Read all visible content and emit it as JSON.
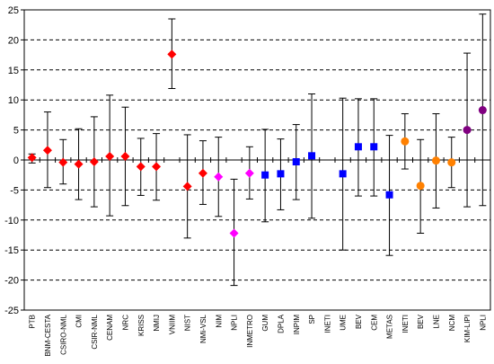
{
  "chart_data": {
    "type": "scatter",
    "title": "",
    "xlabel": "",
    "ylabel": "",
    "ylim": [
      -25,
      25
    ],
    "yticks": [
      25,
      20,
      15,
      10,
      5,
      0,
      -5,
      -10,
      -15,
      -20,
      -25
    ],
    "grid": "horizontal dashed",
    "legend": "none",
    "points": [
      {
        "label": "PTB",
        "y": 0.4,
        "err_low": -0.5,
        "err_high": 1.0,
        "color": "#ff0000",
        "marker": "diamond"
      },
      {
        "label": "BNM-CESTA",
        "y": 1.6,
        "err_low": -4.6,
        "err_high": 8.0,
        "color": "#ff0000",
        "marker": "diamond"
      },
      {
        "label": "CSIRO-NML",
        "y": -0.4,
        "err_low": -4.0,
        "err_high": 3.4,
        "color": "#ff0000",
        "marker": "diamond"
      },
      {
        "label": "CMI",
        "y": -0.7,
        "err_low": -6.6,
        "err_high": 5.2,
        "color": "#ff0000",
        "marker": "diamond"
      },
      {
        "label": "CSIR-NML",
        "y": -0.3,
        "err_low": -7.8,
        "err_high": 7.2,
        "color": "#ff0000",
        "marker": "diamond"
      },
      {
        "label": "CENAM",
        "y": 0.6,
        "err_low": -9.3,
        "err_high": 10.8,
        "color": "#ff0000",
        "marker": "diamond"
      },
      {
        "label": "NRC",
        "y": 0.6,
        "err_low": -7.6,
        "err_high": 8.8,
        "color": "#ff0000",
        "marker": "diamond"
      },
      {
        "label": "KRISS",
        "y": -1.1,
        "err_low": -5.9,
        "err_high": 3.6,
        "color": "#ff0000",
        "marker": "diamond"
      },
      {
        "label": "NMIJ",
        "y": -1.1,
        "err_low": -6.7,
        "err_high": 4.4,
        "color": "#ff0000",
        "marker": "diamond"
      },
      {
        "label": "VNIIM",
        "y": 17.6,
        "err_low": 11.9,
        "err_high": 23.5,
        "color": "#ff0000",
        "marker": "diamond"
      },
      {
        "label": "NIST",
        "y": -4.4,
        "err_low": -13.0,
        "err_high": 4.2,
        "color": "#ff0000",
        "marker": "diamond"
      },
      {
        "label": "NMi-VSL",
        "y": -2.2,
        "err_low": -7.4,
        "err_high": 3.2,
        "color": "#ff0000",
        "marker": "diamond"
      },
      {
        "label": "NIM",
        "y": -2.8,
        "err_low": -9.4,
        "err_high": 3.8,
        "color": "#ff00ff",
        "marker": "diamond"
      },
      {
        "label": "NPLI",
        "y": -12.2,
        "err_low": -20.9,
        "err_high": -3.2,
        "color": "#ff00ff",
        "marker": "diamond"
      },
      {
        "label": "INMETRO",
        "y": -2.2,
        "err_low": -6.5,
        "err_high": 2.2,
        "color": "#ff00ff",
        "marker": "diamond"
      },
      {
        "label": "GUM",
        "y": -2.5,
        "err_low": -10.3,
        "err_high": 5.1,
        "color": "#0000ff",
        "marker": "square"
      },
      {
        "label": "DPLA",
        "y": -2.3,
        "err_low": -8.3,
        "err_high": 3.5,
        "color": "#0000ff",
        "marker": "square"
      },
      {
        "label": "INPIM",
        "y": -0.3,
        "err_low": -6.6,
        "err_high": 5.9,
        "color": "#0000ff",
        "marker": "square"
      },
      {
        "label": "SP",
        "y": 0.7,
        "err_low": -9.7,
        "err_high": 11.0,
        "color": "#0000ff",
        "marker": "square"
      },
      {
        "label": "INETI",
        "y": null,
        "err_low": null,
        "err_high": null,
        "color": "#0000ff",
        "marker": "square"
      },
      {
        "label": "UME",
        "y": -2.3,
        "err_low": -15.0,
        "err_high": 10.3,
        "color": "#0000ff",
        "marker": "square"
      },
      {
        "label": "BEV",
        "y": 2.2,
        "err_low": -6.0,
        "err_high": 10.2,
        "color": "#0000ff",
        "marker": "square"
      },
      {
        "label": "CEM",
        "y": 2.2,
        "err_low": -6.0,
        "err_high": 10.2,
        "color": "#0000ff",
        "marker": "square"
      },
      {
        "label": "METAS",
        "y": -5.8,
        "err_low": -15.9,
        "err_high": 4.1,
        "color": "#0000ff",
        "marker": "square"
      },
      {
        "label": "INETI",
        "y": 3.1,
        "err_low": -1.5,
        "err_high": 7.7,
        "color": "#ff8000",
        "marker": "circle"
      },
      {
        "label": "BEV",
        "y": -4.3,
        "err_low": -12.2,
        "err_high": 3.4,
        "color": "#ff8000",
        "marker": "circle"
      },
      {
        "label": "LNE",
        "y": -0.1,
        "err_low": -8.0,
        "err_high": 7.7,
        "color": "#ff8000",
        "marker": "circle"
      },
      {
        "label": "NCM",
        "y": -0.4,
        "err_low": -4.6,
        "err_high": 3.8,
        "color": "#ff8000",
        "marker": "circle"
      },
      {
        "label": "KIM-LIPI",
        "y": 5.0,
        "err_low": -7.8,
        "err_high": 17.8,
        "color": "#800080",
        "marker": "circle"
      },
      {
        "label": "NPLI",
        "y": 8.3,
        "err_low": -7.6,
        "err_high": 24.3,
        "color": "#800080",
        "marker": "circle"
      }
    ]
  }
}
